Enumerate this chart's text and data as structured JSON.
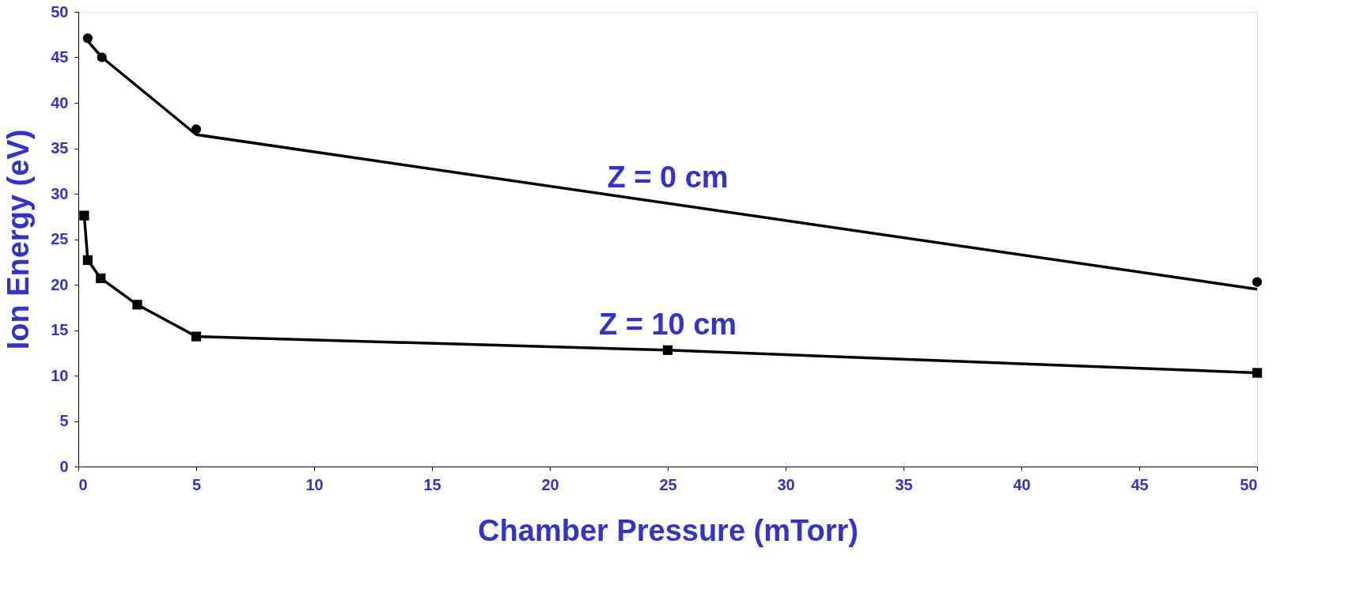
{
  "chart_data": {
    "type": "line",
    "xlabel": "Chamber Pressure (mTorr)",
    "ylabel": "Ion Energy (eV)",
    "xlim": [
      0,
      50
    ],
    "xticks": [
      0,
      5,
      10,
      15,
      20,
      25,
      30,
      35,
      40,
      45,
      50
    ],
    "ylim": [
      0,
      50
    ],
    "yticks": [
      0,
      5,
      10,
      15,
      20,
      25,
      30,
      35,
      40,
      45,
      50
    ],
    "grid": false,
    "series": [
      {
        "type": "scatter",
        "marker": "circle",
        "color": "#000000",
        "x": [
          0.4,
          1,
          5,
          50
        ],
        "values": [
          47.1,
          45.0,
          37.1,
          20.3
        ]
      },
      {
        "name": "Z = 0 cm",
        "marker": "none",
        "color": "#000000",
        "x": [
          0.4,
          1,
          5,
          50
        ],
        "values": [
          46.8,
          45.0,
          36.5,
          19.5
        ]
      },
      {
        "name": "Z = 10 cm",
        "type": "line",
        "marker": "square",
        "color": "#000000",
        "x": [
          0.25,
          0.4,
          0.95,
          2.5,
          5,
          25,
          50
        ],
        "values": [
          27.6,
          22.7,
          20.7,
          17.8,
          14.3,
          12.8,
          10.3
        ]
      }
    ]
  }
}
